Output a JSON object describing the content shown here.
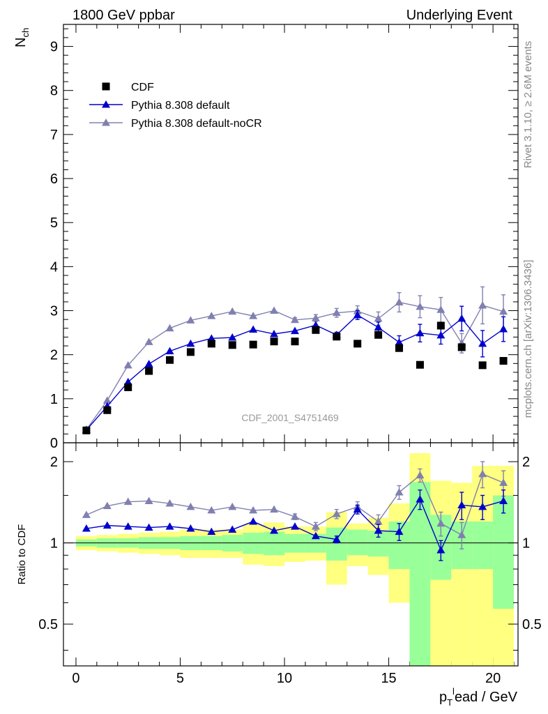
{
  "header": {
    "left_title": "1800 GeV ppbar",
    "right_title": "Underlying Event",
    "analysis_label": "CDF_2001_S4751469",
    "side_text_top": "Rivet 3.1.10, ≥ 2.6M events",
    "side_text_bottom": "mcplots.cern.ch [arXiv:1306.3436]"
  },
  "chart_data": [
    {
      "type": "scatter",
      "panel": "main",
      "ylabel": "N",
      "ylabel_sub": "ch",
      "xlim": [
        -0.6,
        21.2
      ],
      "ylim": [
        0,
        9.5
      ],
      "yticks": [
        0,
        1,
        2,
        3,
        4,
        5,
        6,
        7,
        8,
        9
      ],
      "x": [
        0.5,
        1.5,
        2.5,
        3.5,
        4.5,
        5.5,
        6.5,
        7.5,
        8.5,
        9.5,
        10.5,
        11.5,
        12.5,
        13.5,
        14.5,
        15.5,
        16.5,
        17.5,
        18.5,
        19.5,
        20.5
      ],
      "legend_position": "top-left",
      "series": [
        {
          "name": "CDF",
          "color": "#000000",
          "marker": "square",
          "values": [
            0.28,
            0.74,
            1.26,
            1.63,
            1.88,
            2.06,
            2.25,
            2.22,
            2.23,
            2.3,
            2.3,
            2.56,
            2.41,
            2.25,
            2.45,
            2.15,
            1.77,
            2.66,
            2.17,
            1.76,
            1.86
          ]
        },
        {
          "name": "Pythia 8.308 default",
          "color": "#0000cc",
          "marker": "triangle",
          "values": [
            0.29,
            0.83,
            1.38,
            1.79,
            2.08,
            2.25,
            2.37,
            2.39,
            2.57,
            2.47,
            2.54,
            2.67,
            2.45,
            2.9,
            2.62,
            2.28,
            2.49,
            2.44,
            2.82,
            2.25,
            2.58
          ],
          "errors": [
            0,
            0,
            0,
            0,
            0,
            0,
            0,
            0,
            0,
            0,
            0,
            0,
            0.06,
            0.1,
            0.12,
            0.15,
            0.2,
            0.2,
            0.28,
            0.3,
            0.28
          ]
        },
        {
          "name": "Pythia 8.308 default-noCR",
          "color": "#8080b0",
          "marker": "triangle",
          "values": [
            0.3,
            0.96,
            1.76,
            2.29,
            2.6,
            2.78,
            2.88,
            2.98,
            2.88,
            3.0,
            2.79,
            2.83,
            2.95,
            2.99,
            2.82,
            3.19,
            3.09,
            3.02,
            2.26,
            3.12,
            2.98
          ],
          "errors": [
            0,
            0,
            0,
            0,
            0,
            0,
            0,
            0,
            0,
            0,
            0.05,
            0.08,
            0.1,
            0.12,
            0.15,
            0.22,
            0.25,
            0.28,
            0.22,
            0.42,
            0.38
          ]
        }
      ]
    },
    {
      "type": "scatter",
      "panel": "ratio",
      "ylabel": "Ratio to CDF",
      "xlabel": "p",
      "xlabel_sub": "T",
      "xlabel_sup": "l",
      "xlabel_rest": "ead / GeV",
      "xlim": [
        -0.6,
        21.2
      ],
      "ylim": [
        0.35,
        2.35
      ],
      "yticks": [
        0.5,
        1,
        2
      ],
      "xticks": [
        0,
        5,
        10,
        15,
        20
      ],
      "reference_line": 1,
      "uncertainty_bands": {
        "outer_color": "#ffff80",
        "inner_color": "#99ff99",
        "bin_edges": [
          0,
          1,
          2,
          3,
          4,
          5,
          6,
          7,
          8,
          9,
          10,
          11,
          12,
          13,
          14,
          15,
          16,
          17,
          18,
          19,
          20,
          21
        ],
        "outer_low": [
          0.94,
          0.93,
          0.92,
          0.91,
          0.9,
          0.88,
          0.88,
          0.88,
          0.83,
          0.82,
          0.85,
          0.86,
          0.7,
          0.82,
          0.76,
          0.6,
          0.35,
          0.35,
          0.35,
          0.35,
          0.35
        ],
        "outer_high": [
          1.06,
          1.07,
          1.08,
          1.09,
          1.1,
          1.12,
          1.12,
          1.12,
          1.17,
          1.19,
          1.15,
          1.15,
          1.3,
          1.18,
          1.24,
          1.4,
          2.15,
          1.7,
          1.67,
          1.93,
          1.93
        ],
        "inner_low": [
          0.97,
          0.96,
          0.96,
          0.95,
          0.95,
          0.94,
          0.94,
          0.93,
          0.91,
          0.9,
          0.92,
          0.92,
          0.86,
          0.9,
          0.89,
          0.8,
          0.35,
          0.73,
          0.8,
          0.8,
          0.57
        ],
        "inner_high": [
          1.03,
          1.04,
          1.04,
          1.05,
          1.05,
          1.06,
          1.06,
          1.07,
          1.09,
          1.1,
          1.08,
          1.08,
          1.14,
          1.12,
          1.11,
          1.2,
          1.68,
          1.27,
          1.2,
          1.2,
          1.5
        ]
      },
      "x": [
        0.5,
        1.5,
        2.5,
        3.5,
        4.5,
        5.5,
        6.5,
        7.5,
        8.5,
        9.5,
        10.5,
        11.5,
        12.5,
        13.5,
        14.5,
        15.5,
        16.5,
        17.5,
        18.5,
        19.5,
        20.5
      ],
      "series": [
        {
          "name": "Pythia 8.308 default",
          "color": "#0000cc",
          "values": [
            1.13,
            1.16,
            1.15,
            1.14,
            1.15,
            1.13,
            1.1,
            1.12,
            1.2,
            1.11,
            1.15,
            1.06,
            1.03,
            1.33,
            1.11,
            1.1,
            1.45,
            0.94,
            1.38,
            1.36,
            1.43
          ],
          "errors": [
            0,
            0,
            0,
            0,
            0,
            0,
            0,
            0,
            0,
            0,
            0,
            0,
            0.03,
            0.05,
            0.06,
            0.08,
            0.12,
            0.08,
            0.16,
            0.14,
            0.14
          ]
        },
        {
          "name": "Pythia 8.308 default-noCR",
          "color": "#8080b0",
          "values": [
            1.27,
            1.37,
            1.42,
            1.43,
            1.4,
            1.36,
            1.32,
            1.36,
            1.32,
            1.33,
            1.25,
            1.15,
            1.28,
            1.36,
            1.2,
            1.54,
            1.78,
            1.18,
            1.07,
            1.8,
            1.67
          ],
          "errors": [
            0,
            0,
            0,
            0,
            0,
            0,
            0,
            0,
            0,
            0,
            0.03,
            0.04,
            0.05,
            0.06,
            0.07,
            0.09,
            0.1,
            0.12,
            0.12,
            0.2,
            0.18
          ]
        }
      ]
    }
  ]
}
